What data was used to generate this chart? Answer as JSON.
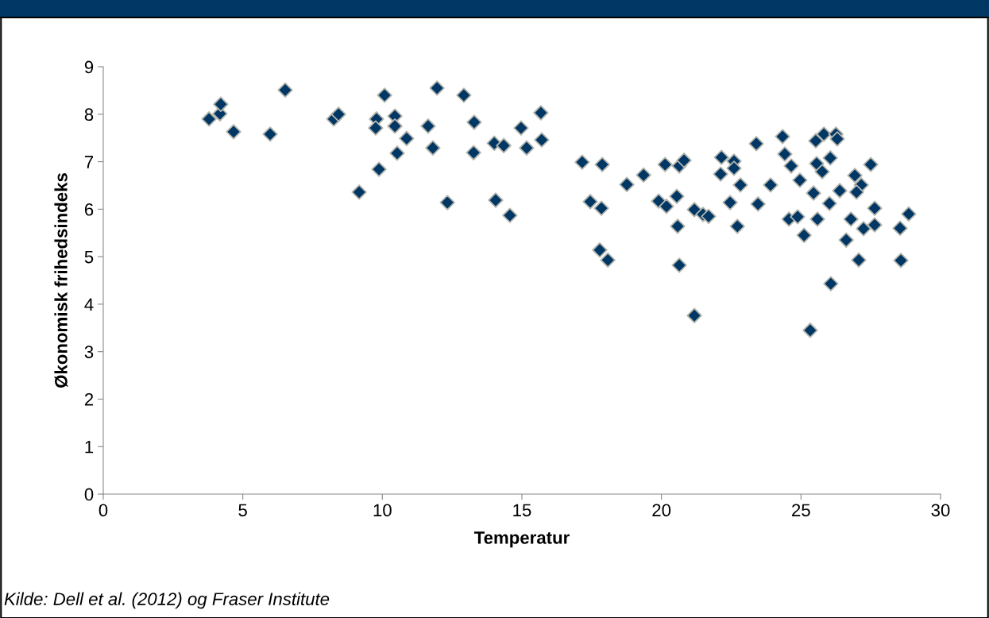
{
  "chart_data": {
    "type": "scatter",
    "xlabel": "Temperatur",
    "ylabel": "Økonomisk frihedsindeks",
    "annotations": [
      "Kilde: Dell et al. (2012) og Fraser Institute"
    ],
    "xlim": [
      0,
      30
    ],
    "xticks": [
      0,
      5,
      10,
      15,
      20,
      25,
      30
    ],
    "ylim": [
      0,
      9
    ],
    "yticks": [
      0,
      1,
      2,
      3,
      4,
      5,
      6,
      7,
      8,
      9
    ],
    "grid": false,
    "legend": false,
    "marker": "diamond",
    "series": [
      {
        "color": "#003764",
        "x": [
          3.79,
          4.18,
          4.21,
          4.67,
          5.98,
          6.52,
          8.26,
          8.43,
          9.79,
          9.76,
          10.08,
          10.45,
          10.45,
          10.87,
          10.53,
          9.88,
          9.17,
          11.64,
          11.81,
          11.96,
          12.92,
          13.29,
          13.27,
          12.33,
          14.06,
          14.57,
          14.01,
          14.35,
          14.97,
          15.17,
          15.68,
          15.71,
          17.16,
          17.88,
          18.76,
          19.36,
          17.45,
          17.85,
          17.79,
          18.08,
          20.13,
          20.64,
          20.81,
          20.55,
          19.9,
          20.18,
          20.58,
          20.64,
          21.18,
          21.49,
          21.69,
          22.15,
          22.12,
          22.6,
          22.6,
          22.83,
          22.46,
          22.72,
          23.4,
          23.91,
          23.46,
          24.34,
          24.42,
          24.65,
          24.96,
          24.57,
          24.88,
          25.11,
          25.45,
          25.53,
          25.82,
          26.25,
          26.3,
          25.56,
          25.76,
          26.05,
          25.59,
          26.02,
          26.39,
          26.79,
          26.62,
          26.93,
          27.16,
          26.99,
          27.24,
          27.5,
          27.64,
          27.64,
          27.07,
          28.55,
          28.86,
          28.58,
          21.18,
          26.07,
          25.33
        ],
        "values": [
          7.9,
          8.01,
          8.21,
          7.63,
          7.58,
          8.51,
          7.9,
          8.0,
          7.9,
          7.71,
          8.4,
          7.96,
          7.75,
          7.49,
          7.18,
          6.84,
          6.36,
          7.75,
          7.29,
          8.55,
          8.4,
          7.83,
          7.19,
          6.14,
          6.19,
          5.87,
          7.39,
          7.34,
          7.71,
          7.29,
          8.03,
          7.46,
          6.99,
          6.94,
          6.52,
          6.72,
          6.16,
          6.02,
          5.14,
          4.93,
          6.94,
          6.91,
          7.03,
          6.27,
          6.17,
          6.06,
          5.64,
          4.82,
          5.99,
          5.89,
          5.85,
          7.09,
          6.74,
          7.01,
          6.86,
          6.51,
          6.14,
          5.64,
          7.38,
          6.51,
          6.11,
          7.53,
          7.16,
          6.91,
          6.61,
          5.79,
          5.84,
          5.45,
          6.34,
          7.44,
          7.58,
          7.58,
          7.48,
          6.96,
          6.79,
          7.08,
          5.79,
          6.12,
          6.39,
          5.79,
          5.35,
          6.71,
          6.51,
          6.36,
          5.59,
          6.94,
          6.02,
          5.67,
          4.93,
          5.6,
          5.9,
          4.92,
          3.76,
          4.43,
          3.45
        ]
      }
    ]
  }
}
